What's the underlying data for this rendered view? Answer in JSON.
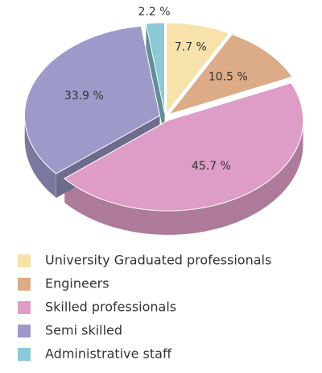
{
  "chart_data": {
    "type": "pie",
    "categories": [
      "University Graduated professionals",
      "Engineers",
      "Skilled professionals",
      "Semi skilled",
      "Administrative staff"
    ],
    "values": [
      7.7,
      10.5,
      45.7,
      33.9,
      2.2
    ],
    "value_labels": [
      "7.7 %",
      "10.5 %",
      "45.7 %",
      "33.9 %",
      "2.2 %"
    ],
    "colors": [
      "#f6e2aa",
      "#dcab87",
      "#de9dc6",
      "#9d9aca",
      "#8bcad6"
    ],
    "legend": "bottom"
  }
}
